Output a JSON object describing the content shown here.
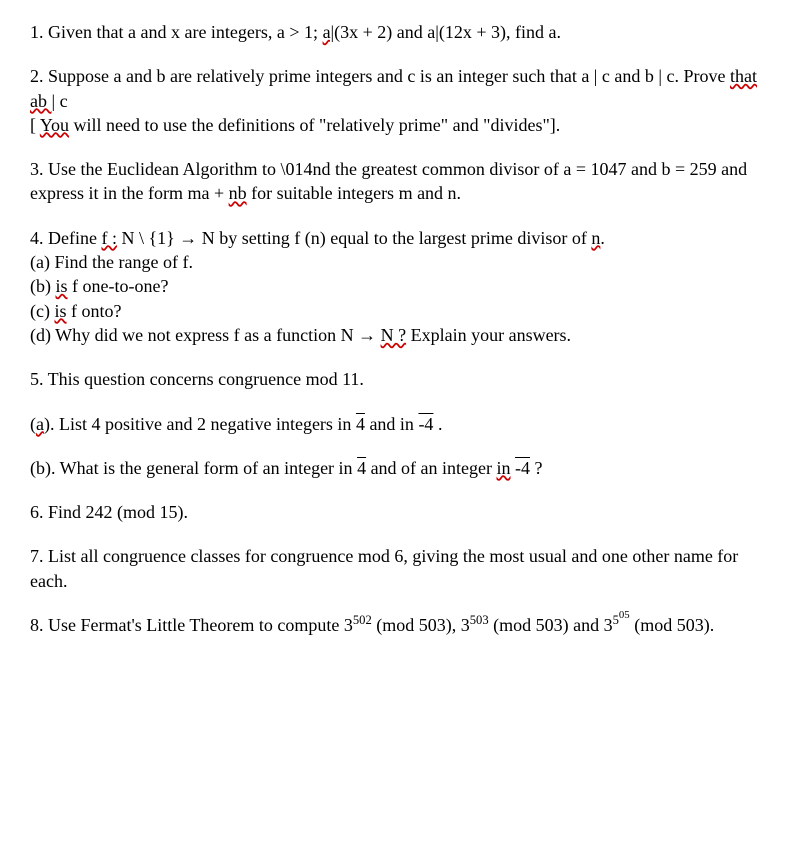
{
  "q1": {
    "text_a": "1. Given that a and x are integers, a > 1; ",
    "text_b": "a|",
    "text_c": "(3x + 2) and a|(12x + 3), find a."
  },
  "q2": {
    "line1": "2. Suppose a and b are relatively prime integers and c is an integer such that a | c and b | c. Prove ",
    "that": "that",
    "ab": " ab ",
    "pipe_c": "| c",
    "bracket_open": "[ ",
    "you": "You",
    "rest": " will need to use the definitions of \"relatively prime\" and \"divides\"]."
  },
  "q3": {
    "line1": "3. Use the Euclidean Algorithm to \\014nd the greatest common divisor of a = 1047 and b = 259 and express it in the form ma + ",
    "nb": "nb",
    "line2": " for suitable integers m and n."
  },
  "q4": {
    "intro_a": "4. Define ",
    "f_colon": "f :",
    "intro_b": " N \\ {1} → N by setting f (n) equal to the largest prime divisor of ",
    "n": "n",
    "dot": ".",
    "a": "(a) Find the range of f.",
    "b_pre": "(b) ",
    "is": "is",
    "b_post": " f one-to-one?",
    "c_pre": "(c) ",
    "is2": "is",
    "c_post": " f onto?",
    "d_pre": "(d) Why did we not express f as a function N → ",
    "N_q": "N ?",
    "d_post": " Explain your answers."
  },
  "q5": {
    "intro": "5. This question concerns congruence mod 11.",
    "a_pre": "(",
    "a_letter": "a",
    "a_mid": "). List 4 positive and 2 negative integers in ",
    "four": "4",
    "a_and": "  and in ",
    "neg4": "-4",
    "a_end": " .",
    "b_pre": "(b). What is the general form of an integer in ",
    "four2": "4",
    "b_mid": " and of an integer ",
    "in": "in",
    "space": " ",
    "neg4b": "-4",
    "b_end": " ?"
  },
  "q6": {
    "text": "6. Find 242 (mod 15)."
  },
  "q7": {
    "text": "7. List all congruence classes for congruence mod 6, giving the most usual and one other name for each."
  },
  "q8": {
    "pre": "8. Use Fermat's Little Theorem to compute 3",
    "e1": "502",
    "mid1": "  (mod 503), 3",
    "e2": "503",
    "mid2": "  (mod 503) and 3",
    "e3": "5",
    "e3b": "05",
    "end": "  (mod 503)."
  }
}
